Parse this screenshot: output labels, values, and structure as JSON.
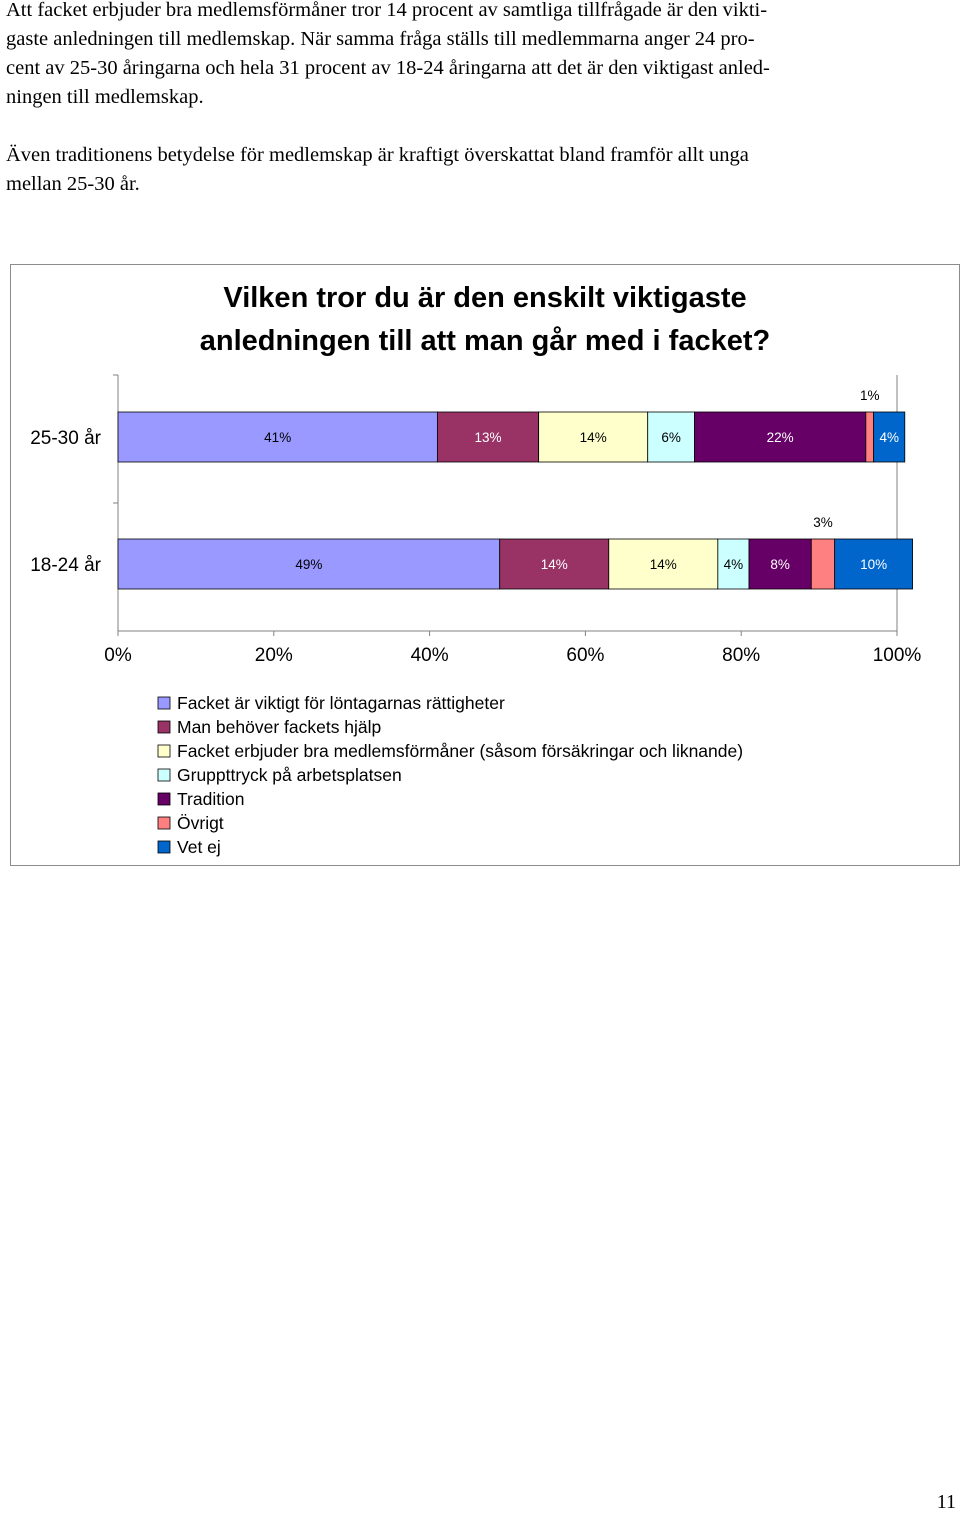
{
  "text": {
    "paragraph1_lines": [
      "Att facket erbjuder bra medlemsförmåner tror 14 procent av samtliga tillfrågade är den vikti-",
      "gaste anledningen till medlemskap. När samma fråga ställs till medlemmarna anger 24 pro-",
      "cent av 25-30 åringarna och hela 31 procent av 18-24 åringarna att det är den viktigast anled-",
      "ningen till medlemskap."
    ],
    "paragraph2_lines": [
      "Även traditionens betydelse för medlemskap är kraftigt överskattat bland framför allt unga",
      "mellan 25-30 år."
    ]
  },
  "page_number": "11",
  "chart_data": {
    "type": "bar",
    "orientation": "horizontal",
    "stacked": true,
    "title_lines": [
      "Vilken tror du är den enskilt viktigaste",
      "anledningen till att man går med i facket?"
    ],
    "categories": [
      "25-30 år",
      "18-24 år"
    ],
    "xlim": [
      0,
      100
    ],
    "xticks": [
      0,
      20,
      40,
      60,
      80,
      100
    ],
    "xtick_labels": [
      "0%",
      "20%",
      "40%",
      "60%",
      "80%",
      "100%"
    ],
    "legend_position": "bottom",
    "series": [
      {
        "name": "Facket är viktigt för löntagarnas rättigheter",
        "color": "#9999ff",
        "values": [
          41,
          49
        ],
        "labels": [
          "41%",
          "49%"
        ]
      },
      {
        "name": "Man behöver fackets hjälp",
        "color": "#993366",
        "values": [
          13,
          14
        ],
        "labels": [
          "13%",
          "14%"
        ]
      },
      {
        "name": "Facket erbjuder bra medlemsförmåner (såsom försäkringar och liknande)",
        "color": "#ffffcc",
        "values": [
          14,
          14
        ],
        "labels": [
          "14%",
          "14%"
        ]
      },
      {
        "name": "Gruppttryck på arbetsplatsen",
        "color": "#ccffff",
        "values": [
          6,
          4
        ],
        "labels": [
          "6%",
          "4%"
        ]
      },
      {
        "name": "Tradition",
        "color": "#660066",
        "values": [
          22,
          8
        ],
        "labels": [
          "22%",
          "8%"
        ]
      },
      {
        "name": "Övrigt",
        "color": "#ff8080",
        "values": [
          1,
          3
        ],
        "labels": [
          "1%",
          "3%"
        ]
      },
      {
        "name": "Vet ej",
        "color": "#0066cc",
        "values": [
          4,
          10
        ],
        "labels": [
          "4%",
          "10%"
        ]
      }
    ]
  }
}
